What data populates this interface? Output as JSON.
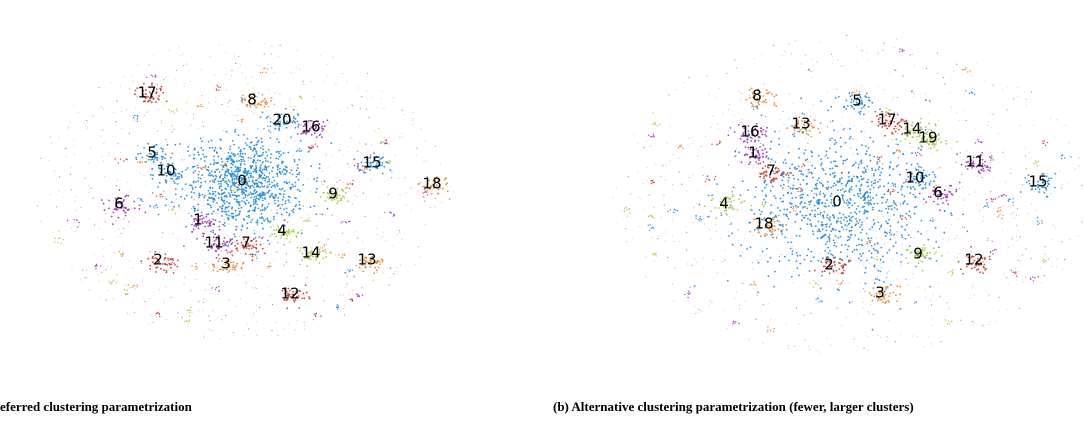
{
  "panels": [
    {
      "caption": "eferred clustering parametrization",
      "clusters": [
        {
          "label": "17"
        },
        {
          "label": "8"
        },
        {
          "label": "20"
        },
        {
          "label": "16"
        },
        {
          "label": "5"
        },
        {
          "label": "10"
        },
        {
          "label": "0"
        },
        {
          "label": "15"
        },
        {
          "label": "18"
        },
        {
          "label": "9"
        },
        {
          "label": "6"
        },
        {
          "label": "1"
        },
        {
          "label": "4"
        },
        {
          "label": "11"
        },
        {
          "label": "7"
        },
        {
          "label": "14"
        },
        {
          "label": "2"
        },
        {
          "label": "3"
        },
        {
          "label": "13"
        },
        {
          "label": "12"
        }
      ]
    },
    {
      "caption": "(b) Alternative clustering parametrization (fewer, larger clusters)",
      "clusters": [
        {
          "label": "8"
        },
        {
          "label": "5"
        },
        {
          "label": "13"
        },
        {
          "label": "17"
        },
        {
          "label": "14"
        },
        {
          "label": "19"
        },
        {
          "label": "16"
        },
        {
          "label": "1"
        },
        {
          "label": "7"
        },
        {
          "label": "11"
        },
        {
          "label": "10"
        },
        {
          "label": "6"
        },
        {
          "label": "15"
        },
        {
          "label": "0"
        },
        {
          "label": "4"
        },
        {
          "label": "18"
        },
        {
          "label": "9"
        },
        {
          "label": "12"
        },
        {
          "label": "2"
        },
        {
          "label": "3"
        }
      ]
    }
  ]
}
